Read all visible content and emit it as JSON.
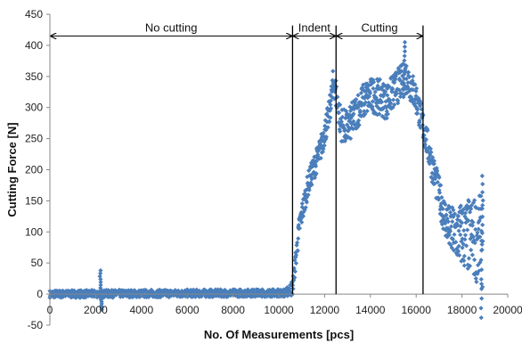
{
  "chart_data": {
    "type": "scatter",
    "title": "",
    "xlabel": "No. Of Measurements [pcs]",
    "ylabel": "Cutting Force [N]",
    "xlim": [
      0,
      20000
    ],
    "ylim": [
      -50,
      450
    ],
    "x_ticks": [
      0,
      2000,
      4000,
      6000,
      8000,
      10000,
      12000,
      14000,
      16000,
      18000,
      20000
    ],
    "y_ticks": [
      -50,
      0,
      50,
      100,
      150,
      200,
      250,
      300,
      350,
      400,
      450
    ],
    "grid": false,
    "marker": "diamond",
    "point_color": "#4a7ebb",
    "series": [
      {
        "name": "",
        "trend": [
          {
            "x": 0,
            "y": 0
          },
          {
            "x": 10300,
            "y": 2
          },
          {
            "x": 10600,
            "y": 10
          },
          {
            "x": 10900,
            "y": 110
          },
          {
            "x": 11300,
            "y": 180
          },
          {
            "x": 11800,
            "y": 230
          },
          {
            "x": 12200,
            "y": 290
          },
          {
            "x": 12400,
            "y": 345
          },
          {
            "x": 12700,
            "y": 275
          },
          {
            "x": 13000,
            "y": 265
          },
          {
            "x": 13400,
            "y": 295
          },
          {
            "x": 13800,
            "y": 315
          },
          {
            "x": 14200,
            "y": 320
          },
          {
            "x": 14700,
            "y": 310
          },
          {
            "x": 15200,
            "y": 335
          },
          {
            "x": 15600,
            "y": 350
          },
          {
            "x": 16000,
            "y": 315
          },
          {
            "x": 16400,
            "y": 255
          },
          {
            "x": 16800,
            "y": 190
          },
          {
            "x": 17200,
            "y": 130
          },
          {
            "x": 17500,
            "y": 100
          },
          {
            "x": 18000,
            "y": 95
          },
          {
            "x": 18500,
            "y": 90
          },
          {
            "x": 18900,
            "y": 85
          }
        ],
        "noise": [
          {
            "x": 0,
            "amp": 6
          },
          {
            "x": 10300,
            "amp": 6
          },
          {
            "x": 10800,
            "amp": 18
          },
          {
            "x": 12200,
            "amp": 22
          },
          {
            "x": 12600,
            "amp": 28
          },
          {
            "x": 14000,
            "amp": 30
          },
          {
            "x": 15600,
            "amp": 28
          },
          {
            "x": 16400,
            "amp": 25
          },
          {
            "x": 17200,
            "amp": 30
          },
          {
            "x": 18000,
            "amp": 55
          },
          {
            "x": 18900,
            "amp": 75
          }
        ],
        "spikes": [
          {
            "x": 2200,
            "y": 38
          },
          {
            "x": 2250,
            "y": -25
          },
          {
            "x": 15500,
            "y": 405
          },
          {
            "x": 18900,
            "y": 190
          },
          {
            "x": 18850,
            "y": -38
          }
        ]
      }
    ],
    "annotations": {
      "phase_lines_x": [
        10600,
        12500,
        16300
      ],
      "arrow_y": 415,
      "phases": [
        {
          "label": "No cutting",
          "from": 0,
          "to": 10600
        },
        {
          "label": "Indent",
          "from": 10600,
          "to": 12500
        },
        {
          "label": "Cutting",
          "from": 12500,
          "to": 16300
        }
      ]
    }
  }
}
